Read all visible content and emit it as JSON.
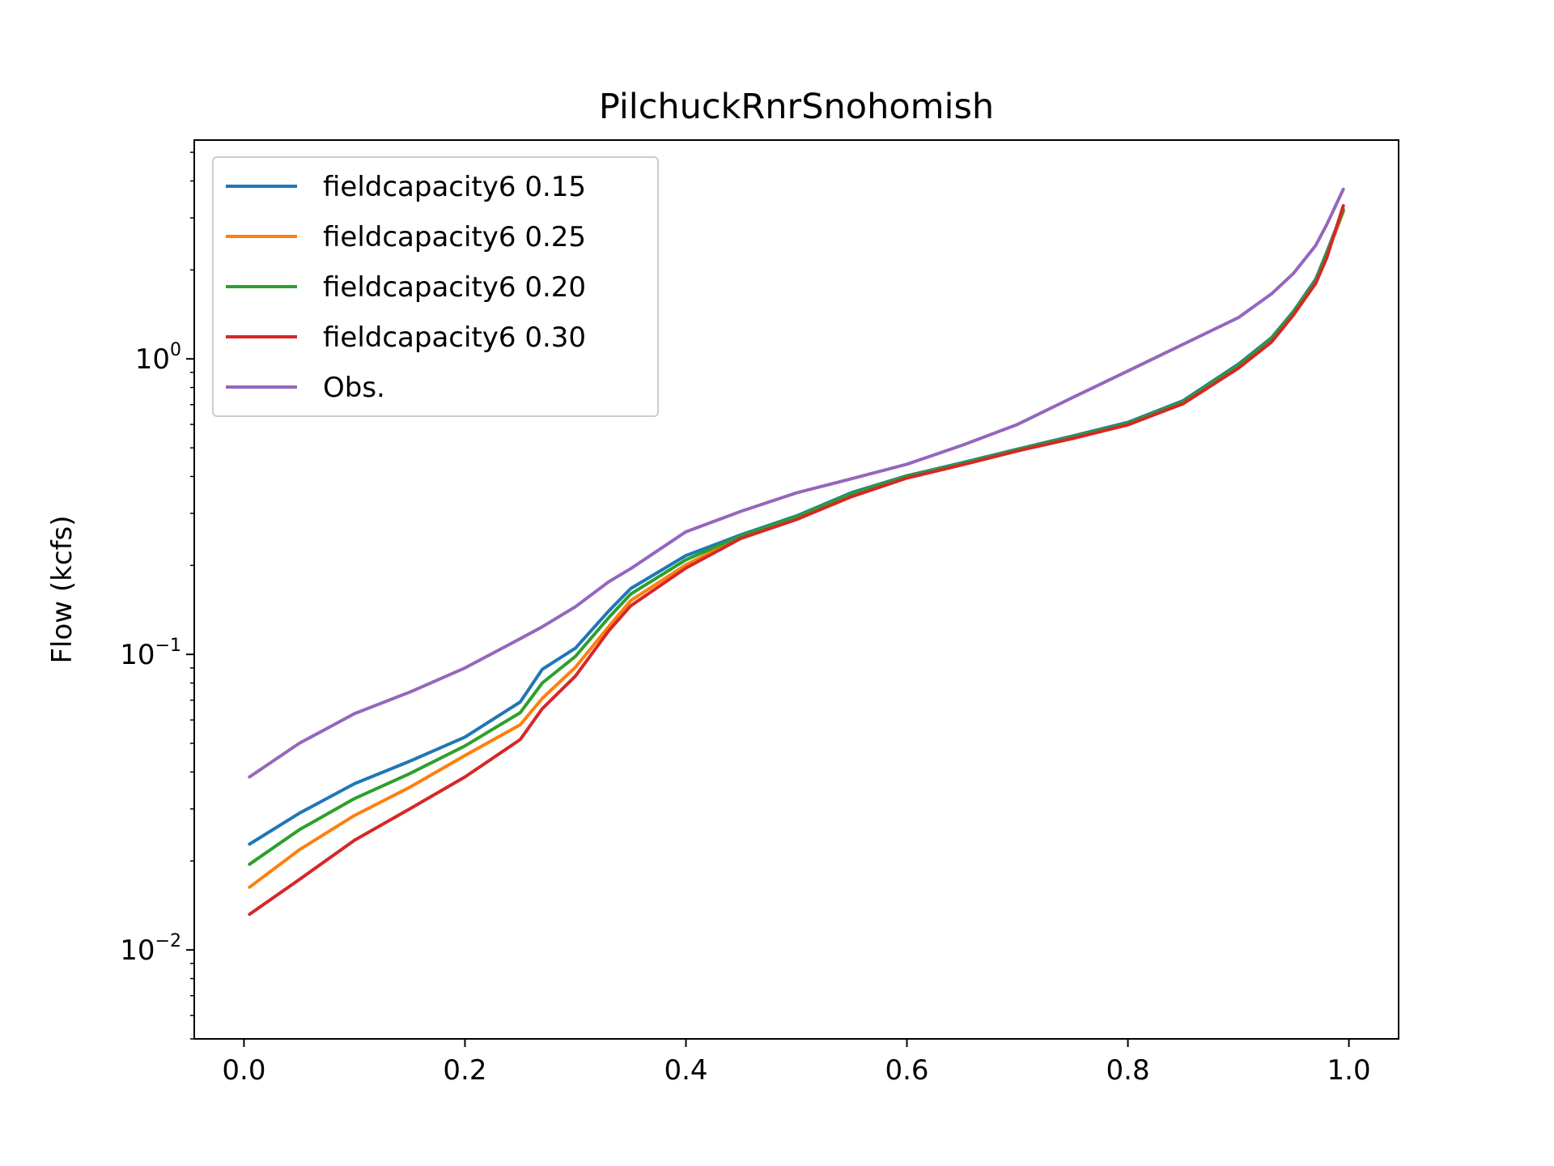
{
  "chart_data": {
    "type": "line",
    "title": "PilchuckRnrSnohomish",
    "xlabel": "",
    "ylabel": "Flow (kcfs)",
    "xlim": [
      -0.045,
      1.045
    ],
    "ylim": [
      0.005,
      5.5
    ],
    "yscale": "log",
    "grid": false,
    "legend_position": "top-left",
    "x_ticks": [
      {
        "value": 0.0,
        "label": "0.0"
      },
      {
        "value": 0.2,
        "label": "0.2"
      },
      {
        "value": 0.4,
        "label": "0.4"
      },
      {
        "value": 0.6,
        "label": "0.6"
      },
      {
        "value": 0.8,
        "label": "0.8"
      },
      {
        "value": 1.0,
        "label": "1.0"
      }
    ],
    "y_ticks": [
      {
        "value": 0.01,
        "base": "10",
        "exponent": "−2"
      },
      {
        "value": 0.1,
        "base": "10",
        "exponent": "−1"
      },
      {
        "value": 1,
        "base": "10",
        "exponent": "0"
      }
    ],
    "x": [
      0.005,
      0.05,
      0.1,
      0.15,
      0.2,
      0.25,
      0.27,
      0.3,
      0.33,
      0.35,
      0.4,
      0.45,
      0.5,
      0.55,
      0.6,
      0.65,
      0.7,
      0.75,
      0.8,
      0.85,
      0.9,
      0.93,
      0.95,
      0.97,
      0.98,
      0.995
    ],
    "series": [
      {
        "name": "fieldcapacity6 0.15",
        "color": "#1f77b4",
        "values": [
          0.0228,
          0.029,
          0.0365,
          0.0435,
          0.0525,
          0.069,
          0.089,
          0.105,
          0.14,
          0.167,
          0.216,
          0.254,
          0.294,
          0.353,
          0.402,
          0.445,
          0.495,
          0.548,
          0.61,
          0.722,
          0.96,
          1.18,
          1.45,
          1.86,
          2.3,
          3.2
        ]
      },
      {
        "name": "fieldcapacity6 0.25",
        "color": "#ff7f0e",
        "values": [
          0.0163,
          0.0218,
          0.0285,
          0.0355,
          0.0455,
          0.0578,
          0.071,
          0.0905,
          0.124,
          0.152,
          0.201,
          0.25,
          0.29,
          0.346,
          0.398,
          0.44,
          0.49,
          0.54,
          0.6,
          0.71,
          0.94,
          1.15,
          1.42,
          1.82,
          2.25,
          3.15
        ]
      },
      {
        "name": "fieldcapacity6 0.20",
        "color": "#2ca02c",
        "values": [
          0.0195,
          0.0255,
          0.0325,
          0.0395,
          0.049,
          0.0635,
          0.08,
          0.0985,
          0.133,
          0.16,
          0.209,
          0.252,
          0.292,
          0.35,
          0.4,
          0.443,
          0.493,
          0.545,
          0.605,
          0.716,
          0.95,
          1.17,
          1.44,
          1.84,
          2.28,
          3.18
        ]
      },
      {
        "name": "fieldcapacity6 0.30",
        "color": "#d62728",
        "values": [
          0.0132,
          0.0173,
          0.0235,
          0.03,
          0.0385,
          0.0515,
          0.0655,
          0.0845,
          0.12,
          0.146,
          0.196,
          0.247,
          0.286,
          0.342,
          0.395,
          0.438,
          0.488,
          0.538,
          0.598,
          0.705,
          0.93,
          1.14,
          1.41,
          1.8,
          2.2,
          3.3
        ]
      },
      {
        "name": "Obs.",
        "color": "#9467bd",
        "values": [
          0.0385,
          0.05,
          0.063,
          0.0745,
          0.09,
          0.113,
          0.124,
          0.145,
          0.176,
          0.195,
          0.26,
          0.305,
          0.352,
          0.393,
          0.44,
          0.51,
          0.6,
          0.74,
          0.91,
          1.12,
          1.38,
          1.66,
          1.95,
          2.42,
          2.85,
          3.75
        ]
      }
    ]
  }
}
